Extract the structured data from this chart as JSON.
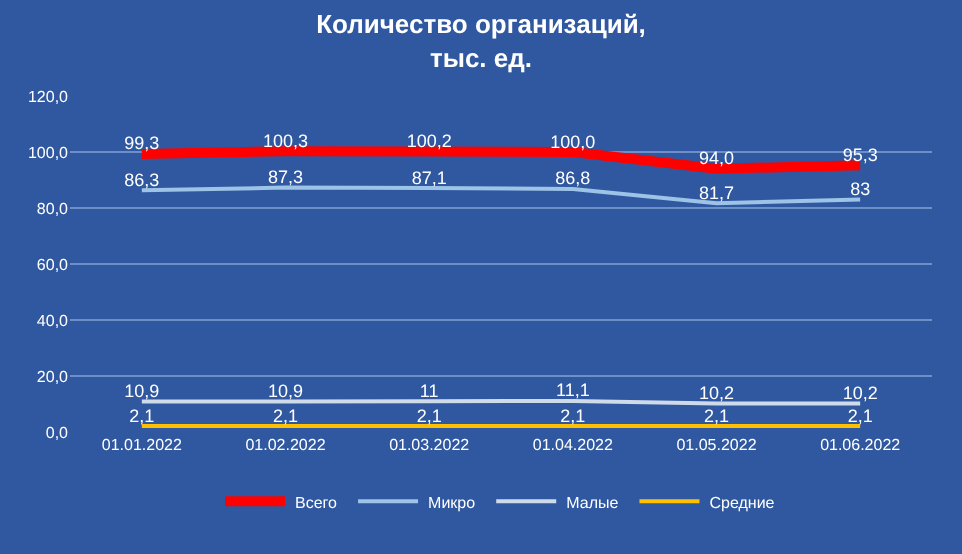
{
  "chart_data": {
    "type": "line",
    "title": "Количество организаций,\nтыс. ед.",
    "categories": [
      "01.01.2022",
      "01.02.2022",
      "01.03.2022",
      "01.04.2022",
      "01.05.2022",
      "01.06.2022"
    ],
    "series": [
      {
        "name": "Всего",
        "color": "#ff0000",
        "values": [
          99.3,
          100.3,
          100.2,
          100.0,
          94.0,
          95.3
        ],
        "value_labels": [
          "99,3",
          "100,3",
          "100,2",
          "100,0",
          "94,0",
          "95,3"
        ]
      },
      {
        "name": "Микро",
        "color": "#9dc3e6",
        "values": [
          86.3,
          87.3,
          87.1,
          86.8,
          81.7,
          83
        ],
        "value_labels": [
          "86,3",
          "87,3",
          "87,1",
          "86,8",
          "81,7",
          "83"
        ]
      },
      {
        "name": "Малые",
        "color": "#d0dbea",
        "values": [
          10.9,
          10.9,
          11,
          11.1,
          10.2,
          10.2
        ],
        "value_labels": [
          "10,9",
          "10,9",
          "11",
          "11,1",
          "10,2",
          "10,2"
        ]
      },
      {
        "name": "Средние",
        "color": "#ffc000",
        "values": [
          2.1,
          2.1,
          2.1,
          2.1,
          2.1,
          2.1
        ],
        "value_labels": [
          "2,1",
          "2,1",
          "2,1",
          "2,1",
          "2,1",
          "2,1"
        ]
      }
    ],
    "ylim": [
      0,
      120
    ],
    "yticks": [
      {
        "value": 0,
        "label": "0,0"
      },
      {
        "value": 20,
        "label": "20,0"
      },
      {
        "value": 40,
        "label": "40,0"
      },
      {
        "value": 60,
        "label": "60,0"
      },
      {
        "value": 80,
        "label": "80,0"
      },
      {
        "value": 100,
        "label": "100,0"
      },
      {
        "value": 120,
        "label": "120,0"
      }
    ],
    "grid": "y",
    "legend": "bottom",
    "marker": "none",
    "line_style": "solid"
  }
}
